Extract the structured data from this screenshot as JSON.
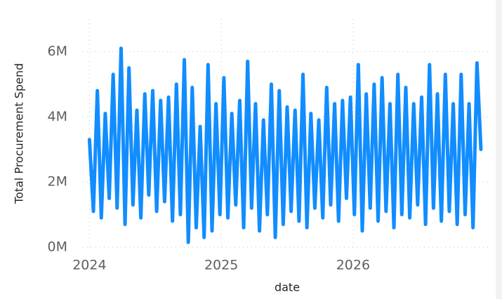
{
  "chart_data": {
    "type": "line",
    "x_label": "date",
    "y_label": "Total Procurement Spend",
    "color": "#118dff",
    "grid": true,
    "xlim": [
      2023.95,
      2027.05
    ],
    "xticks": [
      2024,
      2025,
      2026
    ],
    "ylim": [
      0,
      7
    ],
    "yticks": [
      {
        "value": 0,
        "label": "0M"
      },
      {
        "value": 2,
        "label": "2M"
      },
      {
        "value": 4,
        "label": "4M"
      },
      {
        "value": 6,
        "label": "6M"
      }
    ],
    "x": [
      2024,
      2024.03,
      2024.06,
      2024.09,
      2024.12,
      2024.15,
      2024.18,
      2024.21,
      2024.24,
      2024.27,
      2024.3,
      2024.33,
      2024.36,
      2024.39,
      2024.42,
      2024.45,
      2024.48,
      2024.51,
      2024.54,
      2024.57,
      2024.6,
      2024.63,
      2024.66,
      2024.69,
      2024.72,
      2024.75,
      2024.78,
      2024.81,
      2024.84,
      2024.87,
      2024.9,
      2024.93,
      2024.96,
      2024.99,
      2025.02,
      2025.05,
      2025.08,
      2025.11,
      2025.14,
      2025.17,
      2025.2,
      2025.23,
      2025.26,
      2025.29,
      2025.32,
      2025.35,
      2025.38,
      2025.41,
      2025.44,
      2025.47,
      2025.5,
      2025.53,
      2025.56,
      2025.59,
      2025.62,
      2025.65,
      2025.68,
      2025.71,
      2025.74,
      2025.77,
      2025.8,
      2025.83,
      2025.86,
      2025.89,
      2025.92,
      2025.95,
      2025.98,
      2026.01,
      2026.04,
      2026.07,
      2026.1,
      2026.13,
      2026.16,
      2026.19,
      2026.22,
      2026.25,
      2026.28,
      2026.31,
      2026.34,
      2026.37,
      2026.4,
      2026.43,
      2026.46,
      2026.49,
      2026.52,
      2026.55,
      2026.58,
      2026.61,
      2026.64,
      2026.67,
      2026.7,
      2026.73,
      2026.76,
      2026.79,
      2026.82,
      2026.85,
      2026.88,
      2026.91,
      2026.94,
      2026.97
    ],
    "values": [
      3.3,
      1.1,
      4.8,
      0.9,
      4.1,
      1.5,
      5.3,
      1.2,
      6.1,
      0.7,
      5.5,
      1.3,
      4.2,
      0.9,
      4.7,
      1.6,
      4.8,
      1.1,
      4.5,
      1.4,
      4.6,
      0.8,
      5.0,
      1.0,
      5.75,
      0.15,
      4.9,
      0.6,
      3.7,
      0.3,
      5.6,
      0.5,
      4.4,
      1.0,
      5.2,
      0.9,
      4.1,
      1.3,
      4.5,
      0.6,
      5.7,
      1.2,
      4.4,
      0.5,
      3.9,
      1.0,
      5.0,
      0.3,
      4.8,
      0.7,
      4.3,
      1.1,
      4.2,
      0.8,
      5.3,
      0.6,
      4.1,
      1.2,
      3.9,
      0.9,
      4.9,
      1.3,
      4.4,
      0.8,
      4.5,
      1.5,
      4.6,
      1.0,
      5.6,
      0.5,
      4.7,
      1.2,
      5.0,
      0.8,
      5.2,
      1.1,
      4.4,
      0.6,
      5.3,
      1.0,
      4.9,
      0.9,
      4.4,
      1.3,
      4.6,
      0.7,
      5.6,
      1.2,
      4.7,
      0.8,
      5.3,
      1.1,
      4.4,
      0.7,
      5.3,
      1.0,
      4.4,
      0.6,
      5.65,
      3.0
    ]
  }
}
